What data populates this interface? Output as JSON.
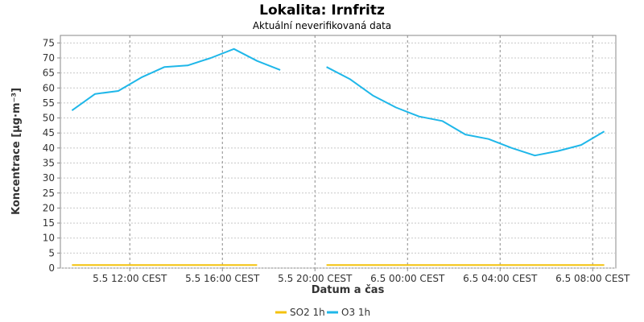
{
  "chart_data": {
    "type": "line",
    "title": "Lokalita: Irnfritz",
    "subtitle": "Aktuální neverifikovaná data",
    "xlabel": "Datum a čas",
    "ylabel": "Koncentrace [µg·m⁻³]",
    "ylim": [
      0,
      77.5
    ],
    "yticks": [
      0,
      5,
      10,
      15,
      20,
      25,
      30,
      35,
      40,
      45,
      50,
      55,
      60,
      65,
      70,
      75
    ],
    "xrange": [
      "2024-05-05 09:00",
      "2024-05-06 09:00"
    ],
    "xticks": [
      {
        "t": "2024-05-05 12:00",
        "label": "5.5 12:00 CEST"
      },
      {
        "t": "2024-05-05 16:00",
        "label": "5.5 16:00 CEST"
      },
      {
        "t": "2024-05-05 20:00",
        "label": "5.5 20:00 CEST"
      },
      {
        "t": "2024-05-06 00:00",
        "label": "6.5 00:00 CEST"
      },
      {
        "t": "2024-05-06 04:00",
        "label": "6.5 04:00 CEST"
      },
      {
        "t": "2024-05-06 08:00",
        "label": "6.5 08:00 CEST"
      }
    ],
    "grid": true,
    "legend": "bottom",
    "series": [
      {
        "name": "SO2 1h",
        "color": "#f4c20d",
        "x": [
          "2024-05-05 09:30",
          "2024-05-05 10:30",
          "2024-05-05 11:30",
          "2024-05-05 12:30",
          "2024-05-05 13:30",
          "2024-05-05 14:30",
          "2024-05-05 15:30",
          "2024-05-05 16:30",
          "2024-05-05 17:30",
          "2024-05-05 18:30",
          "2024-05-05 19:30",
          "2024-05-05 20:30",
          "2024-05-05 21:30",
          "2024-05-05 22:30",
          "2024-05-05 23:30",
          "2024-05-06 00:30",
          "2024-05-06 01:30",
          "2024-05-06 02:30",
          "2024-05-06 03:30",
          "2024-05-06 04:30",
          "2024-05-06 05:30",
          "2024-05-06 06:30",
          "2024-05-06 07:30",
          "2024-05-06 08:30"
        ],
        "y": [
          1,
          1,
          1,
          1,
          1,
          1,
          1,
          1,
          1,
          null,
          null,
          1,
          1,
          1,
          1,
          1,
          1,
          1,
          1,
          1,
          1,
          1,
          1,
          1
        ]
      },
      {
        "name": "O3 1h",
        "color": "#1fb7e9",
        "x": [
          "2024-05-05 09:30",
          "2024-05-05 10:30",
          "2024-05-05 11:30",
          "2024-05-05 12:30",
          "2024-05-05 13:30",
          "2024-05-05 14:30",
          "2024-05-05 15:30",
          "2024-05-05 16:30",
          "2024-05-05 17:30",
          "2024-05-05 18:30",
          "2024-05-05 19:30",
          "2024-05-05 20:30",
          "2024-05-05 21:30",
          "2024-05-05 22:30",
          "2024-05-05 23:30",
          "2024-05-06 00:30",
          "2024-05-06 01:30",
          "2024-05-06 02:30",
          "2024-05-06 03:30",
          "2024-05-06 04:30",
          "2024-05-06 05:30",
          "2024-05-06 06:30",
          "2024-05-06 07:30",
          "2024-05-06 08:30"
        ],
        "y": [
          52.5,
          58,
          59,
          63.5,
          67,
          67.5,
          70,
          73,
          69,
          66,
          null,
          67,
          63,
          57.5,
          53.5,
          50.5,
          49,
          44.5,
          43,
          40,
          37.5,
          39,
          41,
          45.5
        ]
      }
    ]
  }
}
